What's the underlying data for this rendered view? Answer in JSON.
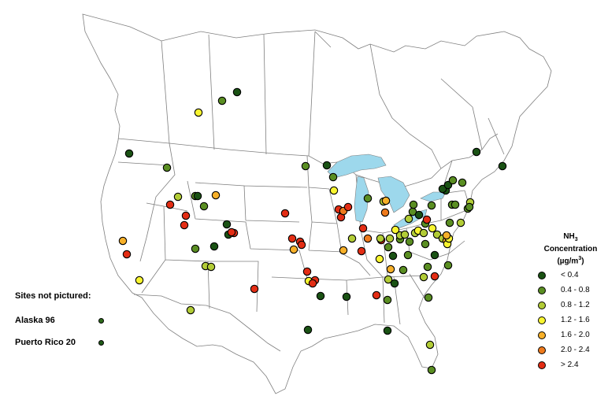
{
  "legend": {
    "title_line1": "NH",
    "title_sub": "3",
    "title_line2": "Concentration",
    "title_unit_pre": "(µg/m",
    "title_unit_sup": "3",
    "title_unit_post": ")",
    "items": [
      {
        "label": "< 0.4",
        "color": "#1a5214"
      },
      {
        "label": "0.4 - 0.8",
        "color": "#5a8e22"
      },
      {
        "label": "0.8 -  1.2",
        "color": "#b2cc36"
      },
      {
        "label": "1.2 - 1.6",
        "color": "#f8f530"
      },
      {
        "label": "1.6 - 2.0",
        "color": "#f7b029"
      },
      {
        "label": "2.0 - 2.4",
        "color": "#ee7a1c"
      },
      {
        "label": "> 2.4",
        "color": "#e32d14"
      }
    ]
  },
  "not_pictured": {
    "heading": "Sites not pictured:",
    "rows": [
      {
        "label": "Alaska 96",
        "color": "#2e6b1a"
      },
      {
        "label": "Puerto Rico 20",
        "color": "#1f5a16"
      }
    ]
  },
  "colors": {
    "lake": "#9dd8ec",
    "boundary": "#7f7f7f",
    "background": "#ffffff"
  }
}
